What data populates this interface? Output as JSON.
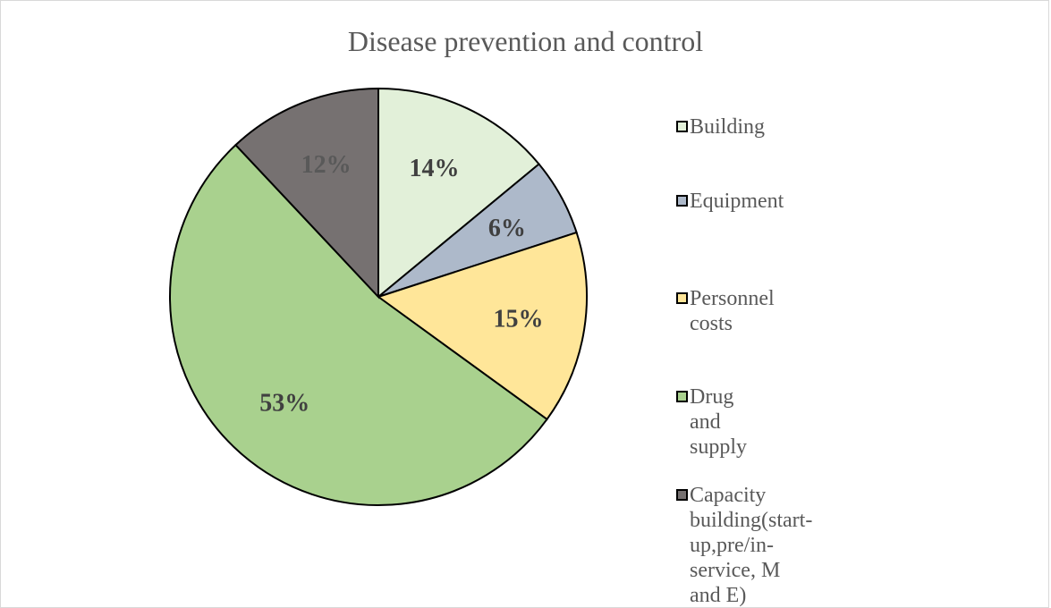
{
  "chart_data": {
    "type": "pie",
    "title": "Disease prevention and control",
    "slices": [
      {
        "label": "Building",
        "value": 14,
        "display": "14%",
        "color": "#E2F0D9",
        "label_color": "#404040"
      },
      {
        "label": "Equipment",
        "value": 6,
        "display": "6%",
        "color": "#ADB9CA",
        "label_color": "#404040"
      },
      {
        "label": "Personnel costs",
        "value": 15,
        "display": "15%",
        "color": "#FFE699",
        "label_color": "#404040"
      },
      {
        "label": "Drug and supply",
        "value": 53,
        "display": "53%",
        "color": "#A9D18E",
        "label_color": "#404040"
      },
      {
        "label": "Capacity building(start-\nup,pre/in-service, M and E)",
        "value": 12,
        "display": "12%",
        "color": "#767171",
        "label_color": "#595959"
      }
    ],
    "legend_position": "right"
  }
}
